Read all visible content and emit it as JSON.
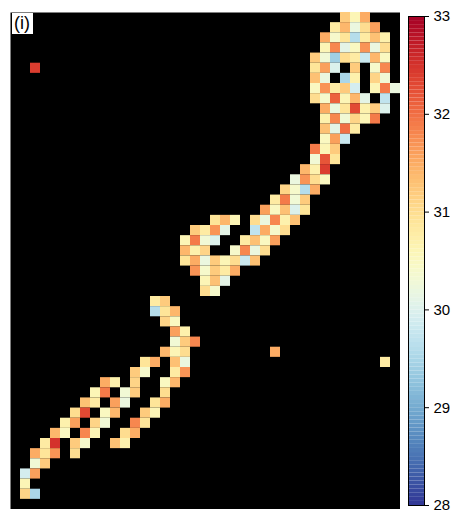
{
  "chart_data": {
    "type": "heatmap",
    "panel_label": "(i)",
    "tick_labels": false,
    "color": "RdYlBu",
    "columns": 39,
    "rows": 49,
    "color_range": [
      28,
      33
    ],
    "color_ticks": [
      28,
      29,
      30,
      31,
      32,
      33
    ],
    "cells": [
      [
        33,
        0,
        31.2
      ],
      [
        34,
        0,
        30.6
      ],
      [
        35,
        0,
        31.5
      ],
      [
        32,
        1,
        30.8
      ],
      [
        33,
        1,
        31.4
      ],
      [
        34,
        1,
        30.2
      ],
      [
        35,
        1,
        31.0
      ],
      [
        36,
        1,
        31.6
      ],
      [
        31,
        2,
        31.5
      ],
      [
        32,
        2,
        30.4
      ],
      [
        33,
        2,
        30.9
      ],
      [
        34,
        2,
        29.6
      ],
      [
        35,
        2,
        30.8
      ],
      [
        36,
        2,
        31.3
      ],
      [
        37,
        2,
        30.7
      ],
      [
        31,
        3,
        30.6
      ],
      [
        32,
        3,
        31.8
      ],
      [
        33,
        3,
        30.1
      ],
      [
        34,
        3,
        30.5
      ],
      [
        35,
        3,
        31.7
      ],
      [
        36,
        3,
        30.2
      ],
      [
        37,
        3,
        31.0
      ],
      [
        30,
        4,
        31.2
      ],
      [
        31,
        4,
        30.3
      ],
      [
        32,
        4,
        29.4
      ],
      [
        33,
        4,
        31.0
      ],
      [
        34,
        4,
        30.8
      ],
      [
        35,
        4,
        29.8
      ],
      [
        36,
        4,
        31.4
      ],
      [
        37,
        4,
        30.5
      ],
      [
        30,
        5,
        30.9
      ],
      [
        31,
        5,
        31.6
      ],
      [
        32,
        5,
        30.0
      ],
      [
        34,
        5,
        31.2
      ],
      [
        36,
        5,
        30.4
      ],
      [
        37,
        5,
        31.8
      ],
      [
        30,
        6,
        31.3
      ],
      [
        31,
        6,
        30.2
      ],
      [
        33,
        6,
        29.5
      ],
      [
        34,
        6,
        30.7
      ],
      [
        36,
        6,
        31.1
      ],
      [
        37,
        6,
        30.3
      ],
      [
        30,
        7,
        30.5
      ],
      [
        31,
        7,
        31.7
      ],
      [
        32,
        7,
        30.8
      ],
      [
        33,
        7,
        31.2
      ],
      [
        34,
        7,
        29.9
      ],
      [
        36,
        7,
        30.6
      ],
      [
        37,
        7,
        31.9
      ],
      [
        38,
        7,
        30.2
      ],
      [
        30,
        8,
        31.0
      ],
      [
        31,
        8,
        30.4
      ],
      [
        32,
        8,
        32.1
      ],
      [
        33,
        8,
        30.6
      ],
      [
        34,
        8,
        31.4
      ],
      [
        35,
        8,
        30.1
      ],
      [
        37,
        8,
        29.7
      ],
      [
        31,
        9,
        31.5
      ],
      [
        32,
        9,
        30.2
      ],
      [
        33,
        9,
        30.9
      ],
      [
        34,
        9,
        32.3
      ],
      [
        35,
        9,
        30.7
      ],
      [
        36,
        9,
        31.2
      ],
      [
        37,
        9,
        30.0
      ],
      [
        31,
        10,
        30.7
      ],
      [
        32,
        10,
        31.8
      ],
      [
        33,
        10,
        30.3
      ],
      [
        34,
        10,
        31.1
      ],
      [
        35,
        10,
        30.6
      ],
      [
        36,
        10,
        31.9
      ],
      [
        31,
        11,
        31.3
      ],
      [
        32,
        11,
        30.1
      ],
      [
        33,
        11,
        32.0
      ],
      [
        34,
        11,
        30.8
      ],
      [
        31,
        12,
        30.5
      ],
      [
        32,
        12,
        31.6
      ],
      [
        33,
        12,
        29.8
      ],
      [
        30,
        13,
        31.9
      ],
      [
        31,
        13,
        30.6
      ],
      [
        32,
        13,
        31.2
      ],
      [
        30,
        14,
        30.3
      ],
      [
        31,
        14,
        32.2
      ],
      [
        32,
        14,
        30.9
      ],
      [
        29,
        15,
        31.4
      ],
      [
        30,
        15,
        30.7
      ],
      [
        31,
        15,
        32.4
      ],
      [
        28,
        16,
        30.2
      ],
      [
        29,
        16,
        31.7
      ],
      [
        30,
        16,
        31.0
      ],
      [
        31,
        16,
        30.5
      ],
      [
        27,
        17,
        31.1
      ],
      [
        28,
        17,
        30.4
      ],
      [
        29,
        17,
        29.6
      ],
      [
        30,
        17,
        31.5
      ],
      [
        26,
        18,
        30.8
      ],
      [
        27,
        18,
        31.9
      ],
      [
        28,
        18,
        30.3
      ],
      [
        29,
        18,
        31.2
      ],
      [
        25,
        19,
        31.6
      ],
      [
        26,
        19,
        30.5
      ],
      [
        27,
        19,
        31.3
      ],
      [
        28,
        19,
        30.0
      ],
      [
        29,
        19,
        30.9
      ],
      [
        20,
        20,
        30.9
      ],
      [
        21,
        20,
        31.4
      ],
      [
        22,
        20,
        30.6
      ],
      [
        24,
        20,
        31.0
      ],
      [
        25,
        20,
        30.2
      ],
      [
        26,
        20,
        31.8
      ],
      [
        27,
        20,
        30.7
      ],
      [
        28,
        20,
        31.3
      ],
      [
        18,
        21,
        31.2
      ],
      [
        19,
        21,
        30.8
      ],
      [
        20,
        21,
        31.7
      ],
      [
        21,
        21,
        30.1
      ],
      [
        24,
        21,
        29.7
      ],
      [
        25,
        21,
        31.5
      ],
      [
        26,
        21,
        30.4
      ],
      [
        27,
        21,
        31.0
      ],
      [
        17,
        22,
        30.6
      ],
      [
        18,
        22,
        31.9
      ],
      [
        19,
        22,
        30.3
      ],
      [
        20,
        22,
        30.0
      ],
      [
        23,
        22,
        30.8
      ],
      [
        24,
        22,
        31.3
      ],
      [
        25,
        22,
        30.5
      ],
      [
        26,
        22,
        31.6
      ],
      [
        17,
        23,
        31.4
      ],
      [
        18,
        23,
        30.7
      ],
      [
        19,
        23,
        31.1
      ],
      [
        22,
        23,
        30.4
      ],
      [
        23,
        23,
        31.8
      ],
      [
        24,
        23,
        30.2
      ],
      [
        25,
        23,
        31.0
      ],
      [
        17,
        24,
        30.9
      ],
      [
        18,
        24,
        31.5
      ],
      [
        19,
        24,
        30.2
      ],
      [
        20,
        24,
        31.2
      ],
      [
        21,
        24,
        30.6
      ],
      [
        22,
        24,
        31.0
      ],
      [
        23,
        24,
        29.8
      ],
      [
        24,
        24,
        31.3
      ],
      [
        18,
        25,
        31.7
      ],
      [
        19,
        25,
        30.4
      ],
      [
        20,
        25,
        31.2
      ],
      [
        21,
        25,
        30.8
      ],
      [
        22,
        25,
        31.5
      ],
      [
        19,
        26,
        30.6
      ],
      [
        20,
        26,
        31.3
      ],
      [
        21,
        26,
        30.1
      ],
      [
        19,
        27,
        31.0
      ],
      [
        20,
        27,
        30.4
      ],
      [
        14,
        28,
        30.8
      ],
      [
        15,
        28,
        31.2
      ],
      [
        14,
        29,
        29.6
      ],
      [
        15,
        29,
        30.9
      ],
      [
        16,
        29,
        31.4
      ],
      [
        15,
        30,
        31.1
      ],
      [
        16,
        30,
        30.5
      ],
      [
        16,
        31,
        31.6
      ],
      [
        17,
        31,
        30.7
      ],
      [
        16,
        32,
        30.3
      ],
      [
        17,
        32,
        31.2
      ],
      [
        18,
        32,
        31.8
      ],
      [
        15,
        33,
        31.4
      ],
      [
        16,
        33,
        30.6
      ],
      [
        17,
        33,
        31.0
      ],
      [
        13,
        34,
        30.9
      ],
      [
        14,
        34,
        31.5
      ],
      [
        16,
        34,
        31.3
      ],
      [
        17,
        34,
        30.2
      ],
      [
        12,
        35,
        31.2
      ],
      [
        13,
        35,
        30.4
      ],
      [
        16,
        35,
        30.8
      ],
      [
        17,
        35,
        31.7
      ],
      [
        9,
        36,
        31.5
      ],
      [
        10,
        36,
        30.7
      ],
      [
        12,
        36,
        31.1
      ],
      [
        15,
        36,
        30.5
      ],
      [
        16,
        36,
        31.4
      ],
      [
        8,
        37,
        30.6
      ],
      [
        9,
        37,
        31.9
      ],
      [
        11,
        37,
        30.3
      ],
      [
        12,
        37,
        31.2
      ],
      [
        15,
        37,
        31.0
      ],
      [
        7,
        38,
        31.3
      ],
      [
        8,
        38,
        30.8
      ],
      [
        10,
        38,
        31.6
      ],
      [
        11,
        38,
        30.2
      ],
      [
        14,
        38,
        30.9
      ],
      [
        15,
        38,
        31.5
      ],
      [
        6,
        39,
        31.0
      ],
      [
        7,
        39,
        32.3
      ],
      [
        9,
        39,
        30.5
      ],
      [
        10,
        39,
        31.4
      ],
      [
        13,
        39,
        31.2
      ],
      [
        14,
        39,
        30.6
      ],
      [
        5,
        40,
        30.7
      ],
      [
        6,
        40,
        31.6
      ],
      [
        8,
        40,
        31.1
      ],
      [
        9,
        40,
        30.3
      ],
      [
        12,
        40,
        31.8
      ],
      [
        13,
        40,
        30.9
      ],
      [
        4,
        41,
        31.4
      ],
      [
        5,
        41,
        30.5
      ],
      [
        7,
        41,
        31.8
      ],
      [
        8,
        41,
        30.6
      ],
      [
        11,
        41,
        31.0
      ],
      [
        12,
        41,
        31.5
      ],
      [
        3,
        42,
        30.8
      ],
      [
        4,
        42,
        32.5
      ],
      [
        6,
        42,
        31.2
      ],
      [
        7,
        42,
        30.4
      ],
      [
        10,
        42,
        31.3
      ],
      [
        11,
        42,
        30.7
      ],
      [
        2,
        43,
        31.5
      ],
      [
        3,
        43,
        30.9
      ],
      [
        4,
        43,
        31.7
      ],
      [
        6,
        43,
        31.0
      ],
      [
        2,
        44,
        30.3
      ],
      [
        3,
        44,
        31.2
      ],
      [
        1,
        45,
        29.9
      ],
      [
        2,
        45,
        31.6
      ],
      [
        1,
        46,
        30.6
      ],
      [
        1,
        47,
        31.1
      ],
      [
        2,
        47,
        29.5
      ],
      [
        2,
        5,
        32.4
      ],
      [
        26,
        33,
        31.5
      ],
      [
        37,
        34,
        30.8
      ]
    ]
  }
}
